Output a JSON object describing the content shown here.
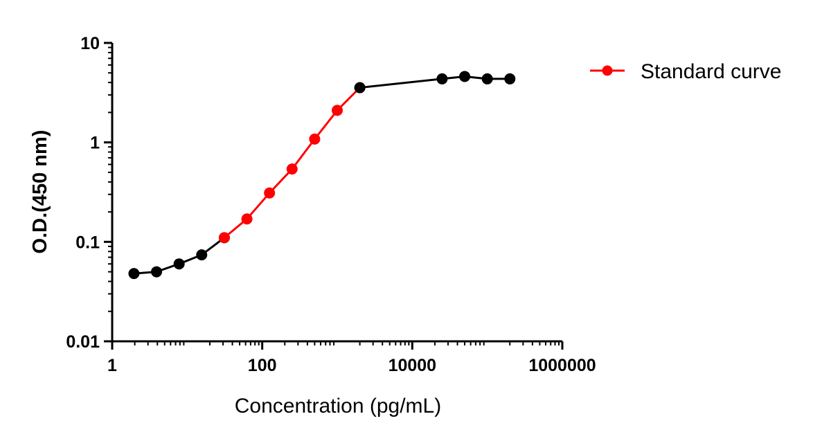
{
  "chart_data": {
    "type": "line",
    "xlabel": "Concentration (pg/mL)",
    "ylabel": "O.D.(450 nm)",
    "xscale": "log",
    "yscale": "log",
    "xlim": [
      1,
      1000000
    ],
    "ylim": [
      0.01,
      10
    ],
    "x_ticks": [
      1,
      100,
      10000,
      1000000
    ],
    "x_tick_labels": [
      "1",
      "100",
      "10000",
      "1000000"
    ],
    "y_ticks": [
      0.01,
      0.1,
      1,
      10
    ],
    "y_tick_labels": [
      "0.01",
      "0.1",
      "1",
      "10"
    ],
    "grid": false,
    "legend_position": "top-right",
    "series": [
      {
        "name": "",
        "color": "#000000",
        "x": [
          1.95,
          3.9,
          7.8,
          15.6,
          31.25
        ],
        "y": [
          0.048,
          0.05,
          0.06,
          0.074,
          0.11
        ]
      },
      {
        "name": "Standard curve",
        "color": "#ff0000",
        "x": [
          31.25,
          62.5,
          125,
          250,
          500,
          1000,
          2000
        ],
        "y": [
          0.11,
          0.17,
          0.31,
          0.54,
          1.08,
          2.1,
          3.55
        ]
      },
      {
        "name": "",
        "color": "#000000",
        "x": [
          2000,
          25000,
          50000,
          100000,
          200000
        ],
        "y": [
          3.55,
          4.35,
          4.6,
          4.35,
          4.35
        ]
      }
    ]
  }
}
